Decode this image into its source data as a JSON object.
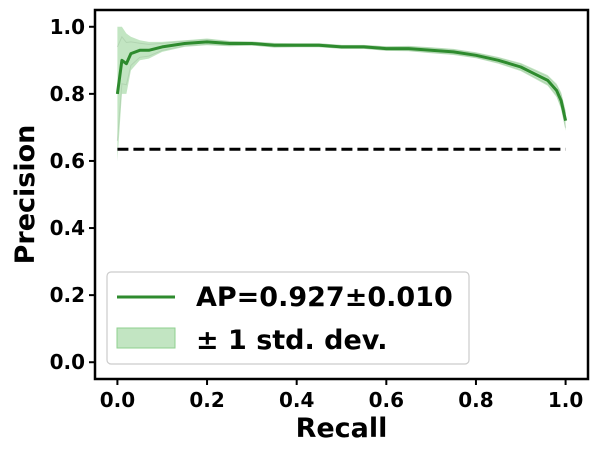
{
  "chart_data": {
    "type": "line",
    "title": "",
    "xlabel": "Recall",
    "ylabel": "Precision",
    "xlim": [
      -0.05,
      1.05
    ],
    "ylim": [
      -0.05,
      1.05
    ],
    "xticks": [
      0.0,
      0.2,
      0.4,
      0.6,
      0.8,
      1.0
    ],
    "xtick_labels": [
      "0.0",
      "0.2",
      "0.4",
      "0.6",
      "0.8",
      "1.0"
    ],
    "yticks": [
      0.0,
      0.2,
      0.4,
      0.6,
      0.8,
      1.0
    ],
    "ytick_labels": [
      "0.0",
      "0.2",
      "0.4",
      "0.6",
      "0.8",
      "1.0"
    ],
    "grid": false,
    "legend_position": "bottom-left",
    "colors": {
      "mean": "#2e8b2e",
      "band": "#8fd08f",
      "baseline": "#000000",
      "folds": "#bbbbbb"
    },
    "series": [
      {
        "name": "AP=0.927±0.010",
        "x": [
          0.0,
          0.01,
          0.02,
          0.03,
          0.05,
          0.07,
          0.1,
          0.15,
          0.2,
          0.25,
          0.3,
          0.35,
          0.4,
          0.45,
          0.5,
          0.55,
          0.6,
          0.65,
          0.7,
          0.75,
          0.8,
          0.85,
          0.9,
          0.93,
          0.96,
          0.98,
          0.99,
          1.0
        ],
        "y": [
          0.8,
          0.9,
          0.89,
          0.92,
          0.93,
          0.93,
          0.94,
          0.95,
          0.955,
          0.95,
          0.95,
          0.945,
          0.945,
          0.945,
          0.94,
          0.94,
          0.935,
          0.935,
          0.93,
          0.925,
          0.915,
          0.9,
          0.88,
          0.86,
          0.84,
          0.81,
          0.78,
          0.72
        ]
      }
    ],
    "band": {
      "name": "± 1 std. dev.",
      "x": [
        0.0,
        0.01,
        0.02,
        0.03,
        0.05,
        0.07,
        0.1,
        0.15,
        0.2,
        0.25,
        0.3,
        0.35,
        0.4,
        0.45,
        0.5,
        0.55,
        0.6,
        0.65,
        0.7,
        0.75,
        0.8,
        0.85,
        0.9,
        0.93,
        0.96,
        0.98,
        0.99,
        1.0
      ],
      "upper": [
        1.0,
        1.0,
        0.98,
        0.97,
        0.96,
        0.955,
        0.955,
        0.96,
        0.965,
        0.958,
        0.956,
        0.952,
        0.951,
        0.951,
        0.946,
        0.946,
        0.942,
        0.943,
        0.939,
        0.934,
        0.924,
        0.91,
        0.892,
        0.874,
        0.856,
        0.83,
        0.805,
        0.75
      ],
      "lower": [
        0.6,
        0.8,
        0.8,
        0.87,
        0.9,
        0.905,
        0.925,
        0.94,
        0.945,
        0.942,
        0.944,
        0.938,
        0.939,
        0.939,
        0.934,
        0.934,
        0.928,
        0.927,
        0.921,
        0.916,
        0.906,
        0.89,
        0.868,
        0.846,
        0.824,
        0.79,
        0.755,
        0.69
      ]
    },
    "baseline": {
      "x": [
        0.0,
        1.0
      ],
      "y": [
        0.635,
        0.635
      ]
    },
    "legend": [
      {
        "label": "AP=0.927±0.010",
        "kind": "line"
      },
      {
        "label": "± 1 std. dev.",
        "kind": "patch"
      }
    ]
  }
}
